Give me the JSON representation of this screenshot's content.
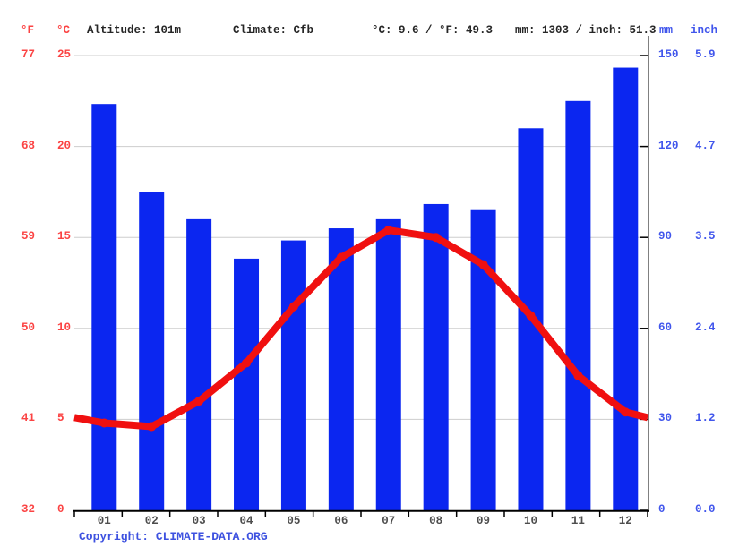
{
  "header": {
    "unit_f": "°F",
    "unit_c": "°C",
    "altitude": "Altitude: 101m",
    "climate": "Climate: Cfb",
    "temperature_summary": "°C: 9.6 / °F: 49.3",
    "precipitation_summary": "mm: 1303 / inch: 51.3",
    "unit_mm": "mm",
    "unit_inch": "inch"
  },
  "axes": {
    "fahrenheit_ticks": [
      "77",
      "68",
      "59",
      "50",
      "41",
      "32"
    ],
    "celsius_ticks": [
      "25",
      "20",
      "15",
      "10",
      "5",
      "0"
    ],
    "mm_ticks": [
      "150",
      "120",
      "90",
      "60",
      "30",
      "0"
    ],
    "inch_ticks": [
      "5.9",
      "4.7",
      "3.5",
      "2.4",
      "1.2",
      "0.0"
    ]
  },
  "chart_data": {
    "type": "bar",
    "subtype": "climograph: precipitation bars + temperature line",
    "categories": [
      "01",
      "02",
      "03",
      "04",
      "05",
      "06",
      "07",
      "08",
      "09",
      "10",
      "11",
      "12"
    ],
    "series": [
      {
        "name": "Precipitation (mm)",
        "type": "bar",
        "values": [
          134,
          105,
          96,
          83,
          89,
          93,
          96,
          101,
          99,
          126,
          135,
          146
        ]
      },
      {
        "name": "Temperature (°C)",
        "type": "line",
        "values": [
          4.8,
          4.6,
          6.0,
          8.1,
          11.2,
          13.9,
          15.4,
          15.0,
          13.5,
          10.7,
          7.4,
          5.4
        ]
      }
    ],
    "y_left": {
      "unit": "°C",
      "range": [
        0,
        25
      ],
      "ticks": [
        0,
        5,
        10,
        15,
        20,
        25
      ]
    },
    "y_left_secondary": {
      "unit": "°F",
      "ticks": [
        32,
        41,
        50,
        59,
        68,
        77
      ]
    },
    "y_right": {
      "unit": "mm",
      "range": [
        0,
        150
      ],
      "ticks": [
        0,
        30,
        60,
        90,
        120,
        150
      ]
    },
    "y_right_secondary": {
      "unit": "inch",
      "ticks": [
        0.0,
        1.2,
        2.4,
        3.5,
        4.7,
        5.9
      ]
    },
    "grid": true,
    "legend": false,
    "annual_mean_temp_c": 9.6,
    "annual_precip_mm": 1303
  },
  "footer": {
    "copyright_label": "Copyright: ",
    "site": "CLIMATE-DATA.ORG"
  },
  "colors": {
    "bar_blue": "#0b26f0",
    "line_red": "#f01010",
    "red_text": "#fb4343",
    "blue_text": "#4156ec",
    "copyright_blue": "#3d51e0",
    "month_text": "#4d4d4d",
    "header_text": "#262626",
    "grid": "#cdcdcd",
    "axis_black": "#000000"
  }
}
